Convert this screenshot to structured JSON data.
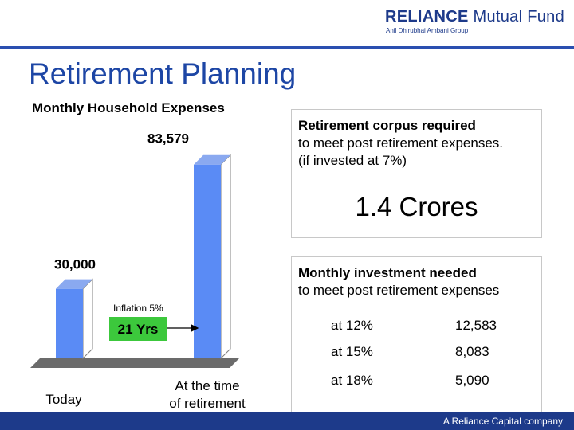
{
  "header": {
    "logo_brand": "RELIANCE",
    "logo_product": "Mutual Fund",
    "logo_group": "Anil Dhirubhai Ambani Group"
  },
  "title": "Retirement Planning",
  "chart_data": {
    "type": "bar",
    "title": "Monthly Household Expenses",
    "categories": [
      "Today",
      "At the time of retirement"
    ],
    "values": [
      30000,
      83579
    ],
    "value_labels": [
      "30,000",
      "83,579"
    ],
    "ylim": [
      0,
      90000
    ],
    "grid": false,
    "legend": "none",
    "bar_color": "#5a8bf5",
    "annotations": {
      "inflation": "Inflation 5%",
      "duration": "21 Yrs"
    }
  },
  "corpus_box": {
    "title": "Retirement corpus required",
    "line2": "to meet post retirement expenses.",
    "line3": "(if invested at 7%)",
    "value": "1.4 Crores"
  },
  "investment_box": {
    "title": "Monthly investment needed",
    "line2": "to meet post retirement expenses",
    "rows": [
      {
        "label": "at 12%",
        "value": "12,583"
      },
      {
        "label": "at 15%",
        "value": "8,083"
      },
      {
        "label": "at 18%",
        "value": "5,090"
      }
    ]
  },
  "footer": "A Reliance Capital company",
  "colors": {
    "accent": "#1d46a5",
    "footer": "#1d3a8a",
    "bar": "#5a8bf5",
    "duration_box": "#3cc83c"
  }
}
